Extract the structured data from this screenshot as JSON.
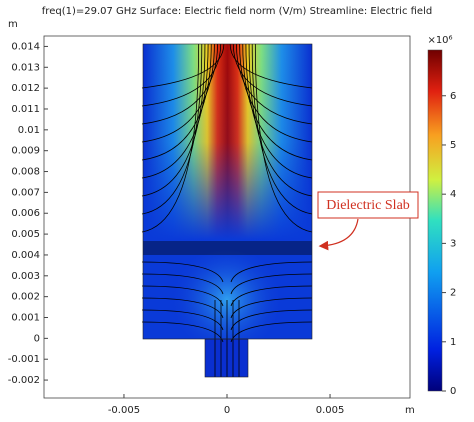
{
  "chart_data": {
    "type": "field",
    "title": "freq(1)=29.07 GHz  Surface: Electric field norm (V/m)  Streamline: Electric field",
    "x_label": "m",
    "y_label": "m",
    "xlim": [
      -0.00888,
      0.00888
    ],
    "xticks": [
      -0.005,
      0,
      0.005
    ],
    "ylim": [
      -0.00286,
      0.0145
    ],
    "yticks": [
      0.014,
      0.013,
      0.012,
      0.011,
      0.01,
      0.009,
      0.008,
      0.007,
      0.006,
      0.005,
      0.004,
      0.003,
      0.002,
      0.001,
      0,
      -0.001,
      -0.002
    ],
    "colorbar": {
      "label": "×10⁶",
      "clim": [
        0,
        6.93
      ],
      "ticks": [
        0,
        1,
        2,
        3,
        4,
        5,
        6
      ]
    },
    "annotation": "Dielectric Slab"
  }
}
